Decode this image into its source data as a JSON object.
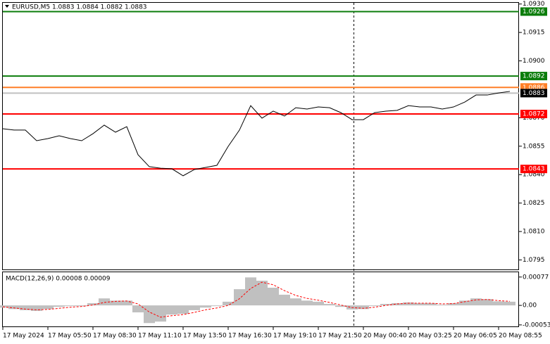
{
  "chart_data": [
    {
      "type": "line",
      "title": "EURUSD,M5  1.0883 1.0884 1.0882 1.0883",
      "categories": [
        "17 May 2024",
        null,
        null,
        null,
        "17 May 05:50",
        null,
        null,
        null,
        "17 May 08:30",
        null,
        null,
        null,
        "17 May 11:10",
        null,
        null,
        null,
        "17 May 13:50",
        null,
        null,
        null,
        "17 May 16:30",
        null,
        null,
        null,
        "17 May 19:10",
        null,
        null,
        null,
        "17 May 21:50",
        null,
        null,
        null,
        "20 May 00:40",
        null,
        null,
        null,
        "20 May 03:25",
        null,
        null,
        null,
        "20 May 06:05",
        null,
        null,
        null,
        "20 May 08:55",
        null
      ],
      "series": [
        {
          "color": "#000000",
          "values": [
            1.08642,
            1.08635,
            1.08635,
            1.08579,
            1.0859,
            1.08605,
            1.0859,
            1.08579,
            1.08616,
            1.08661,
            1.08624,
            1.08653,
            1.08505,
            1.08442,
            1.08434,
            1.08431,
            1.08394,
            1.08427,
            1.08438,
            1.08449,
            1.08549,
            1.08635,
            1.08764,
            1.08698,
            1.08735,
            1.08709,
            1.08753,
            1.08746,
            1.08757,
            1.08753,
            1.08727,
            1.0869,
            1.0869,
            1.08727,
            1.08735,
            1.08739,
            1.08764,
            1.08757,
            1.08757,
            1.08746,
            1.08757,
            1.08783,
            1.0882,
            1.0882,
            1.08831,
            1.08839
          ]
        }
      ],
      "levels": [
        {
          "value": 1.0926,
          "color": "#0b7d0b"
        },
        {
          "value": 1.0892,
          "color": "#0b7d0b"
        },
        {
          "value": 1.0886,
          "color": "#ff7f27"
        },
        {
          "value": 1.0883,
          "color": "#000000"
        },
        {
          "value": 1.0872,
          "color": "#ff0000"
        },
        {
          "value": 1.0843,
          "color": "#ff0000"
        }
      ],
      "ylim": [
        1.079,
        1.0931
      ],
      "yticks": [
        {
          "value": 1.093,
          "label": "1.0930"
        },
        {
          "value": 1.0915,
          "label": "1.0915"
        },
        {
          "value": 1.09,
          "label": "1.0900"
        },
        {
          "value": 1.087,
          "label": "1.0870"
        },
        {
          "value": 1.0855,
          "label": "1.0855"
        },
        {
          "value": 1.084,
          "label": "1.0840"
        },
        {
          "value": 1.0825,
          "label": "1.0825"
        },
        {
          "value": 1.081,
          "label": "1.0810"
        },
        {
          "value": 1.0795,
          "label": "1.0795"
        }
      ]
    },
    {
      "type": "macd",
      "title": "MACD(12,26,9) 0.00008 0.00009",
      "series": [
        {
          "color": "#c0c0c0",
          "values": [
            -6e-05,
            -0.0001,
            -0.00013,
            -0.00015,
            -0.0001,
            -4e-05,
            -2e-05,
            -2e-05,
            6e-05,
            0.00019,
            0.00013,
            0.00013,
            -0.00019,
            -0.00048,
            -0.00044,
            -0.00025,
            -0.00023,
            -0.00013,
            -6e-05,
            -2e-05,
            0.0001,
            0.00044,
            0.00076,
            0.00067,
            0.00048,
            0.00029,
            0.00019,
            0.00013,
            0.0001,
            4e-05,
            -4e-05,
            -0.00011,
            -0.0001,
            -2e-05,
            4e-05,
            6e-05,
            8e-05,
            6e-05,
            6e-05,
            2e-05,
            6e-05,
            0.00013,
            0.00019,
            0.00017,
            0.00011,
            0.0001
          ]
        },
        {
          "color": "#ff0000",
          "type": "line",
          "values": [
            -4e-05,
            -7e-05,
            -0.0001,
            -0.00012,
            -0.00011,
            -8e-05,
            -5e-05,
            -3e-05,
            1e-05,
            8e-05,
            0.00011,
            0.00012,
            4e-05,
            -0.00018,
            -0.00032,
            -0.00028,
            -0.00025,
            -0.00019,
            -0.00012,
            -7e-05,
            0,
            0.00018,
            0.00046,
            0.00063,
            0.00056,
            0.0004,
            0.00027,
            0.00019,
            0.00014,
            8e-05,
            1e-05,
            -6e-05,
            -8e-05,
            -5e-05,
            0,
            4e-05,
            6e-05,
            6e-05,
            6e-05,
            4e-05,
            5e-05,
            0.0001,
            0.00015,
            0.00016,
            0.00013,
            0.00011
          ]
        }
      ],
      "ylim": [
        -0.00059,
        0.0009
      ],
      "yticks": [
        0.00077,
        {
          "value": 0,
          "label": "0.00"
        },
        -0.00053
      ]
    }
  ]
}
